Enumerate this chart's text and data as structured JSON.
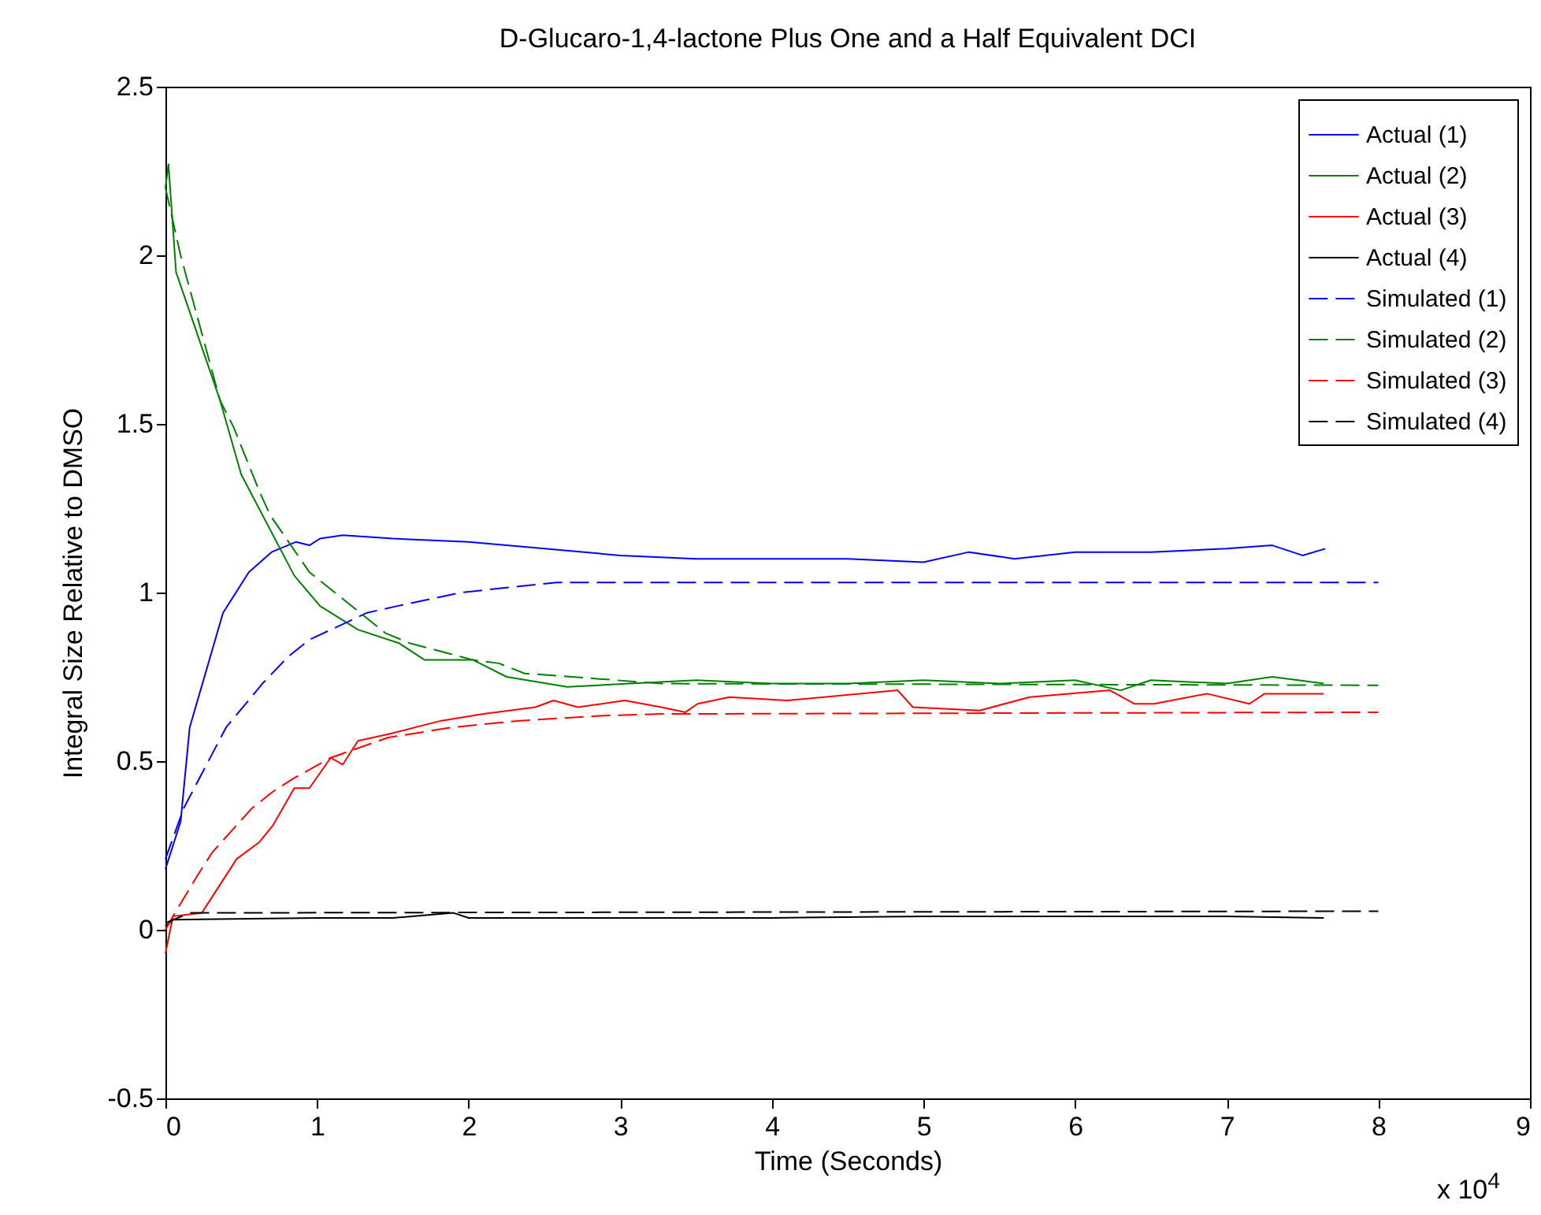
{
  "chart_data": {
    "type": "line",
    "title": "D-Glucaro-1,4-lactone Plus One and a Half Equivalent DCI",
    "xlabel": "Time (Seconds)",
    "ylabel": "Integral Size Relative to DMSO",
    "annotations": [
      "x 10$^{4}$"
    ],
    "xlim": [
      0,
      9
    ],
    "xticks": [
      0,
      1,
      2,
      3,
      4,
      5,
      6,
      7,
      8,
      9
    ],
    "ylim": [
      -0.5,
      2.5
    ],
    "yticks": [
      -0.5,
      0,
      0.5,
      1,
      1.5,
      2,
      2.5
    ],
    "legend": "top right",
    "series": [
      {
        "name": "Actual (1)",
        "color": "#0000ff",
        "line_style": "solid",
        "x": [
          0,
          0.1,
          0.16,
          0.38,
          0.55,
          0.7,
          0.86,
          0.95,
          1.02,
          1.17,
          1.5,
          2,
          2.5,
          3,
          3.5,
          4,
          4.5,
          5,
          5.3,
          5.6,
          6,
          6.5,
          7,
          7.3,
          7.5,
          7.65
        ],
        "values": [
          0.18,
          0.32,
          0.6,
          0.94,
          1.06,
          1.12,
          1.15,
          1.14,
          1.16,
          1.17,
          1.16,
          1.15,
          1.13,
          1.11,
          1.1,
          1.1,
          1.1,
          1.09,
          1.12,
          1.1,
          1.12,
          1.12,
          1.13,
          1.14,
          1.11,
          1.13
        ]
      },
      {
        "name": "Actual (2)",
        "color": "#008000",
        "line_style": "solid",
        "x": [
          0,
          0.02,
          0.07,
          0.36,
          0.5,
          0.85,
          1.02,
          1.27,
          1.54,
          1.71,
          2.03,
          2.25,
          2.65,
          3.06,
          3.5,
          4,
          4.5,
          5,
          5.5,
          6,
          6.3,
          6.5,
          7,
          7.3,
          7.64
        ],
        "values": [
          2.2,
          2.27,
          1.95,
          1.57,
          1.35,
          1.05,
          0.96,
          0.89,
          0.85,
          0.8,
          0.8,
          0.75,
          0.72,
          0.73,
          0.74,
          0.73,
          0.73,
          0.74,
          0.73,
          0.74,
          0.71,
          0.74,
          0.73,
          0.75,
          0.73
        ]
      },
      {
        "name": "Actual (3)",
        "color": "#ff0000",
        "line_style": "solid",
        "x": [
          0,
          0.05,
          0.24,
          0.47,
          0.62,
          0.71,
          0.85,
          0.95,
          1.09,
          1.17,
          1.27,
          1.47,
          1.82,
          2.1,
          2.44,
          2.56,
          2.72,
          3.03,
          3.27,
          3.43,
          3.51,
          3.72,
          4.1,
          4.83,
          4.93,
          5.37,
          5.7,
          6.23,
          6.39,
          6.52,
          6.87,
          7.15,
          7.25,
          7.64
        ],
        "values": [
          -0.07,
          0.04,
          0.05,
          0.21,
          0.26,
          0.31,
          0.42,
          0.42,
          0.51,
          0.49,
          0.56,
          0.58,
          0.62,
          0.64,
          0.66,
          0.68,
          0.66,
          0.68,
          0.66,
          0.645,
          0.67,
          0.69,
          0.68,
          0.71,
          0.66,
          0.65,
          0.69,
          0.71,
          0.67,
          0.67,
          0.7,
          0.67,
          0.7,
          0.7
        ]
      },
      {
        "name": "Actual (4)",
        "color": "#000000",
        "line_style": "solid",
        "x": [
          0,
          0.05,
          1,
          1.5,
          1.9,
          2,
          3,
          4,
          5,
          6,
          7,
          7.64
        ],
        "values": [
          0.01,
          0.03,
          0.035,
          0.035,
          0.05,
          0.035,
          0.035,
          0.035,
          0.04,
          0.04,
          0.04,
          0.035
        ]
      },
      {
        "name": "Simulated (1)",
        "color": "#0000ff",
        "line_style": "dashed",
        "x": [
          0,
          0.12,
          0.4,
          0.64,
          0.81,
          0.95,
          1.33,
          1.53,
          1.95,
          2.58,
          3.24,
          8
        ],
        "values": [
          0.21,
          0.36,
          0.6,
          0.73,
          0.81,
          0.86,
          0.94,
          0.96,
          1,
          1.03,
          1.03,
          1.03
        ]
      },
      {
        "name": "Simulated (2)",
        "color": "#008000",
        "line_style": "dashed",
        "x": [
          0,
          0.1,
          0.36,
          0.45,
          0.62,
          0.69,
          0.95,
          1.09,
          1.45,
          1.61,
          2.03,
          2.2,
          2.37,
          2.68,
          3.27,
          8
        ],
        "values": [
          2.2,
          2,
          1.57,
          1.49,
          1.3,
          1.23,
          1.06,
          1.01,
          0.88,
          0.85,
          0.8,
          0.79,
          0.76,
          0.75,
          0.73,
          0.725
        ]
      },
      {
        "name": "Simulated (3)",
        "color": "#ff0000",
        "line_style": "dashed",
        "x": [
          0,
          0.05,
          0.21,
          0.31,
          0.57,
          0.71,
          0.85,
          1.09,
          1.47,
          1.89,
          2.34,
          2.89,
          3.27,
          8
        ],
        "values": [
          0,
          0.04,
          0.16,
          0.23,
          0.36,
          0.41,
          0.45,
          0.51,
          0.57,
          0.6,
          0.62,
          0.635,
          0.64,
          0.645
        ]
      },
      {
        "name": "Simulated (4)",
        "color": "#000000",
        "line_style": "dashed",
        "x": [
          0,
          0.16,
          8
        ],
        "values": [
          0.02,
          0.05,
          0.055
        ]
      }
    ]
  }
}
